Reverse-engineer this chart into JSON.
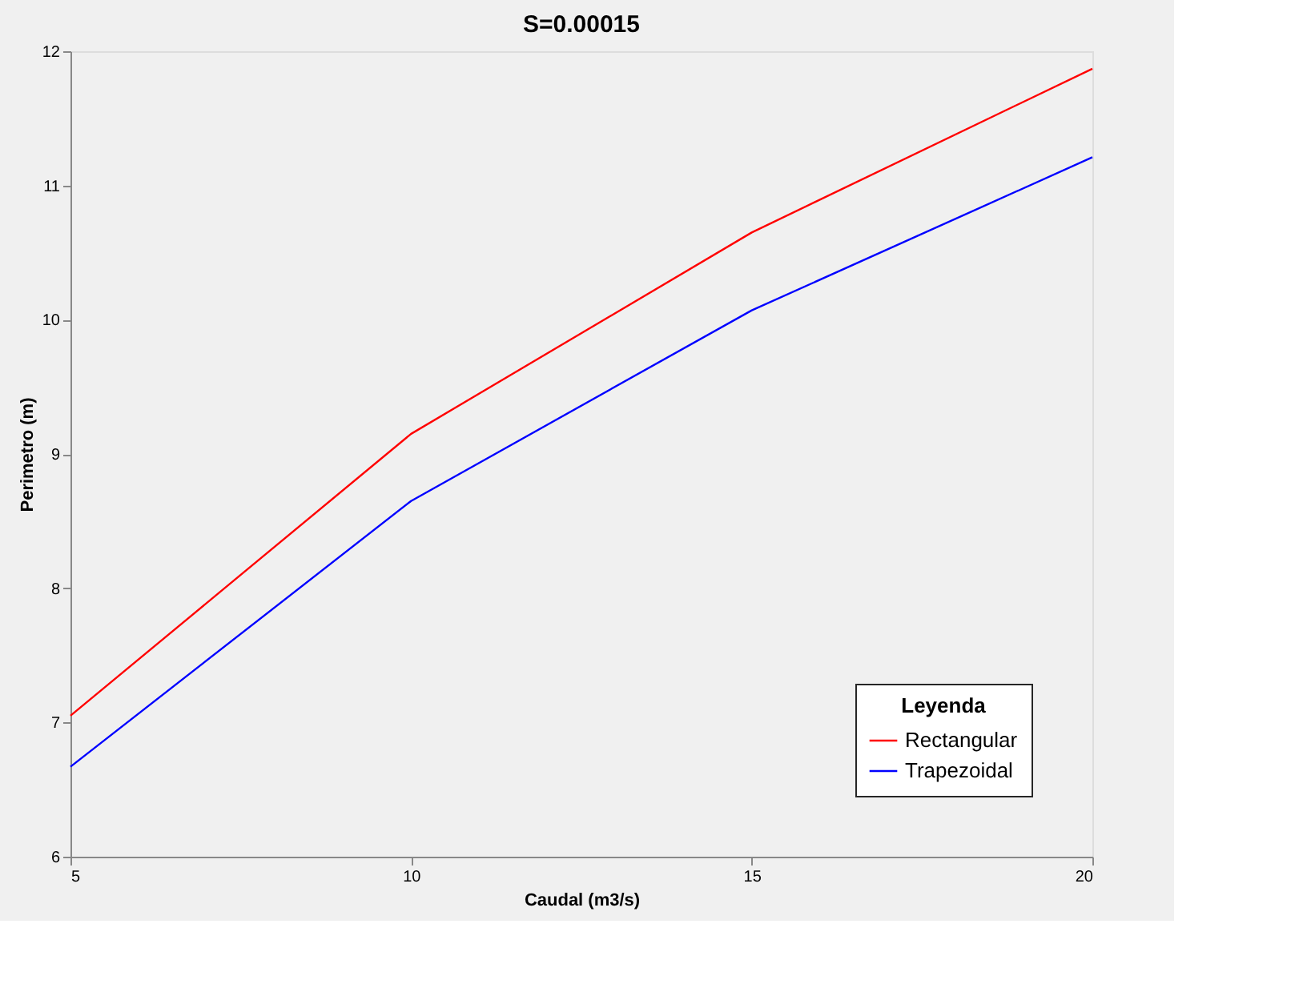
{
  "chart_data": {
    "type": "line",
    "title": "S=0.00015",
    "xlabel": "Caudal (m3/s)",
    "ylabel": "Perimetro (m)",
    "legend_title": "Leyenda",
    "x": [
      5,
      10,
      15,
      20
    ],
    "series": [
      {
        "name": "Rectangular",
        "color": "#ff0000",
        "values": [
          7.05,
          9.15,
          10.65,
          11.87
        ]
      },
      {
        "name": "Trapezoidal",
        "color": "#0000ff",
        "values": [
          6.67,
          8.65,
          10.07,
          11.21
        ]
      }
    ],
    "xlim": [
      5,
      20
    ],
    "xticks": [
      5,
      10,
      15,
      20
    ],
    "ylim": [
      6,
      12
    ],
    "yticks": [
      6,
      7,
      8,
      9,
      10,
      11,
      12
    ],
    "grid": false,
    "legend": "bottom right",
    "marker": "none",
    "line_style": "solid"
  }
}
